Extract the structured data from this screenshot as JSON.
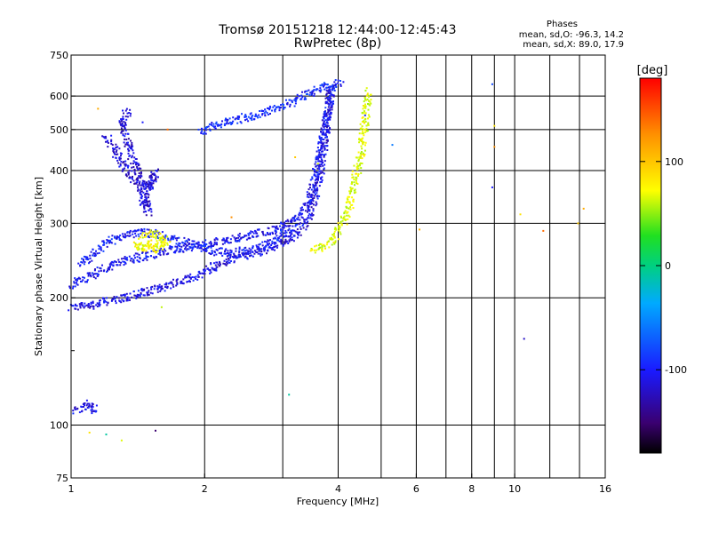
{
  "header": {
    "title_line1": "Tromsø 20151218 12:44:00-12:45:43",
    "title_line2": "RwPretec (8p)",
    "stats_heading": "Phases",
    "stats_o": "mean, sd,O: -96.3, 14.2",
    "stats_x": "mean, sd,X: 89.0, 17.9"
  },
  "chart_data": {
    "type": "scatter",
    "xlabel": "Frequency [MHz]",
    "ylabel": "Stationary phase Virtual Height [km]",
    "x_scale": "log",
    "y_scale": "log",
    "xlim": [
      1,
      16
    ],
    "ylim": [
      75,
      750
    ],
    "x_ticks": [
      1,
      2,
      4,
      6,
      8,
      10,
      16
    ],
    "x_tick_labels": [
      "1",
      "2",
      "4",
      "6",
      "8",
      "10",
      "16"
    ],
    "x_minor_ticks": [
      3,
      5,
      7,
      9,
      12,
      14
    ],
    "y_ticks": [
      75,
      100,
      200,
      300,
      400,
      500,
      600,
      750
    ],
    "y_tick_labels": [
      "75",
      "100",
      "200",
      "300",
      "400",
      "500",
      "600",
      "750"
    ],
    "y_minor_ticks": [
      150
    ],
    "grid": true,
    "colorbar": {
      "label": "[deg]",
      "range": [
        -180,
        180
      ],
      "ticks": [
        100,
        0,
        -100
      ],
      "tick_labels": [
        "100",
        "0",
        "-100"
      ],
      "palette": "rainbow"
    },
    "traces": [
      {
        "id": "lower-trace",
        "phase_deg": -110,
        "points": [
          [
            1.0,
            190
          ],
          [
            1.1,
            192
          ],
          [
            1.2,
            196
          ],
          [
            1.3,
            199
          ],
          [
            1.4,
            203
          ],
          [
            1.5,
            207
          ],
          [
            1.6,
            212
          ],
          [
            1.8,
            220
          ],
          [
            2.0,
            230
          ],
          [
            2.2,
            242
          ],
          [
            2.4,
            250
          ],
          [
            2.6,
            256
          ],
          [
            2.8,
            262
          ],
          [
            3.0,
            270
          ],
          [
            3.2,
            282
          ],
          [
            3.4,
            300
          ],
          [
            3.5,
            330
          ],
          [
            3.6,
            370
          ],
          [
            3.7,
            430
          ],
          [
            3.75,
            500
          ],
          [
            3.8,
            560
          ],
          [
            3.85,
            620
          ]
        ]
      },
      {
        "id": "upper-lower-trace",
        "phase_deg": -105,
        "points": [
          [
            1.0,
            215
          ],
          [
            1.1,
            225
          ],
          [
            1.2,
            235
          ],
          [
            1.3,
            244
          ],
          [
            1.5,
            252
          ],
          [
            1.7,
            260
          ],
          [
            2.0,
            268
          ],
          [
            2.3,
            276
          ],
          [
            2.6,
            283
          ],
          [
            2.9,
            292
          ],
          [
            3.2,
            305
          ],
          [
            3.4,
            330
          ],
          [
            3.5,
            360
          ],
          [
            3.6,
            410
          ],
          [
            3.7,
            480
          ],
          [
            3.8,
            560
          ],
          [
            3.88,
            640
          ]
        ]
      },
      {
        "id": "mid-trace",
        "phase_deg": -100,
        "points": [
          [
            1.05,
            240
          ],
          [
            1.15,
            260
          ],
          [
            1.25,
            275
          ],
          [
            1.35,
            283
          ],
          [
            1.5,
            285
          ],
          [
            1.7,
            275
          ],
          [
            1.9,
            265
          ],
          [
            2.1,
            258
          ],
          [
            2.3,
            255
          ],
          [
            2.6,
            260
          ],
          [
            2.9,
            275
          ],
          [
            3.2,
            295
          ]
        ]
      },
      {
        "id": "upper-trace",
        "phase_deg": -95,
        "points": [
          [
            1.95,
            490
          ],
          [
            2.1,
            510
          ],
          [
            2.3,
            525
          ],
          [
            2.5,
            535
          ],
          [
            2.7,
            545
          ],
          [
            2.9,
            560
          ],
          [
            3.1,
            575
          ],
          [
            3.3,
            595
          ],
          [
            3.5,
            615
          ],
          [
            3.7,
            630
          ],
          [
            3.9,
            640
          ],
          [
            4.1,
            645
          ]
        ]
      },
      {
        "id": "spread-e",
        "phase_deg": -115,
        "points": [
          [
            1.2,
            480
          ],
          [
            1.25,
            450
          ],
          [
            1.3,
            420
          ],
          [
            1.35,
            395
          ],
          [
            1.4,
            380
          ],
          [
            1.45,
            370
          ],
          [
            1.5,
            365
          ],
          [
            1.55,
            395
          ],
          [
            1.45,
            340
          ],
          [
            1.5,
            320
          ],
          [
            1.3,
            520
          ],
          [
            1.35,
            560
          ]
        ]
      },
      {
        "id": "x-trace",
        "phase_deg": 90,
        "points": [
          [
            3.5,
            260
          ],
          [
            3.7,
            265
          ],
          [
            3.9,
            272
          ],
          [
            4.0,
            285
          ],
          [
            4.1,
            300
          ],
          [
            4.2,
            320
          ],
          [
            4.3,
            350
          ],
          [
            4.4,
            390
          ],
          [
            4.5,
            430
          ],
          [
            4.55,
            480
          ],
          [
            4.6,
            530
          ],
          [
            4.65,
            580
          ],
          [
            4.7,
            620
          ]
        ]
      },
      {
        "id": "x-spread",
        "phase_deg": 95,
        "points": [
          [
            1.45,
            280
          ],
          [
            1.55,
            285
          ],
          [
            1.65,
            270
          ],
          [
            1.4,
            265
          ],
          [
            1.6,
            260
          ]
        ]
      },
      {
        "id": "low-es",
        "phase_deg": -110,
        "points": [
          [
            1.02,
            108
          ],
          [
            1.05,
            110
          ],
          [
            1.08,
            112
          ],
          [
            1.1,
            111
          ],
          [
            1.12,
            109
          ],
          [
            1.15,
            110
          ]
        ]
      }
    ],
    "scattered_points": [
      {
        "x": 1.15,
        "y": 560,
        "phase": 130
      },
      {
        "x": 1.45,
        "y": 520,
        "phase": -100
      },
      {
        "x": 1.65,
        "y": 500,
        "phase": 150
      },
      {
        "x": 2.3,
        "y": 310,
        "phase": 140
      },
      {
        "x": 3.2,
        "y": 430,
        "phase": 120
      },
      {
        "x": 3.6,
        "y": 415,
        "phase": 90
      },
      {
        "x": 4.6,
        "y": 540,
        "phase": -90
      },
      {
        "x": 5.3,
        "y": 460,
        "phase": -60
      },
      {
        "x": 6.1,
        "y": 290,
        "phase": 130
      },
      {
        "x": 8.9,
        "y": 640,
        "phase": -80
      },
      {
        "x": 9.0,
        "y": 510,
        "phase": 110
      },
      {
        "x": 9.0,
        "y": 455,
        "phase": 140
      },
      {
        "x": 8.9,
        "y": 365,
        "phase": -100
      },
      {
        "x": 10.3,
        "y": 315,
        "phase": 110
      },
      {
        "x": 11.6,
        "y": 288,
        "phase": 150
      },
      {
        "x": 13.9,
        "y": 300,
        "phase": 120
      },
      {
        "x": 14.3,
        "y": 325,
        "phase": 130
      },
      {
        "x": 10.5,
        "y": 160,
        "phase": -120
      },
      {
        "x": 3.1,
        "y": 118,
        "phase": -10
      },
      {
        "x": 1.55,
        "y": 97,
        "phase": -150
      },
      {
        "x": 1.1,
        "y": 96,
        "phase": 110
      },
      {
        "x": 1.2,
        "y": 95,
        "phase": -10
      },
      {
        "x": 1.3,
        "y": 92,
        "phase": 90
      },
      {
        "x": 1.6,
        "y": 190,
        "phase": 80
      }
    ]
  }
}
